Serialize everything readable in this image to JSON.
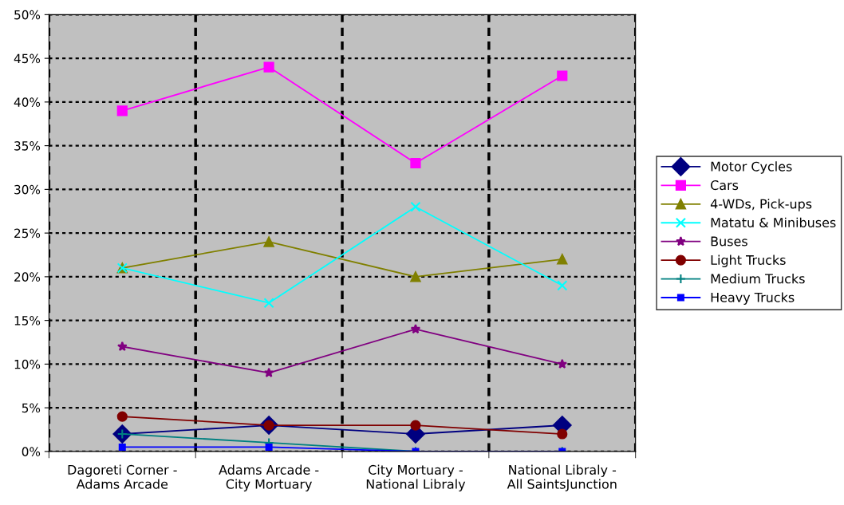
{
  "chart_data": {
    "type": "line",
    "categories": [
      "Dagoreti Corner -\nAdams Arcade",
      "Adams Arcade -\nCity Mortuary",
      "City Mortuary -\nNational Libraly",
      "National Libraly -\nAll SaintsJunction"
    ],
    "series": [
      {
        "name": "Motor Cycles",
        "color": "#000080",
        "marker": "diamond",
        "values": [
          2,
          3,
          2,
          3
        ]
      },
      {
        "name": "Cars",
        "color": "#ff00ff",
        "marker": "square",
        "values": [
          39,
          44,
          33,
          43
        ]
      },
      {
        "name": "4-WDs, Pick-ups",
        "color": "#808000",
        "marker": "triangle",
        "values": [
          21,
          24,
          20,
          22
        ]
      },
      {
        "name": "Matatu & Minibuses",
        "color": "#00ffff",
        "marker": "cross",
        "values": [
          21,
          17,
          28,
          19
        ]
      },
      {
        "name": "Buses",
        "color": "#800080",
        "marker": "star",
        "values": [
          12,
          9,
          14,
          10
        ]
      },
      {
        "name": "Light Trucks",
        "color": "#800000",
        "marker": "circle",
        "values": [
          4,
          3,
          3,
          2
        ]
      },
      {
        "name": "Medium Trucks",
        "color": "#008080",
        "marker": "plus",
        "values": [
          2,
          1,
          0,
          0
        ]
      },
      {
        "name": "Heavy Trucks",
        "color": "#0000ff",
        "marker": "square",
        "values": [
          0.5,
          0.5,
          0,
          0
        ]
      }
    ],
    "ylim": [
      0,
      50
    ],
    "yticks": [
      {
        "value": 0,
        "label": "0%"
      },
      {
        "value": 5,
        "label": "5%"
      },
      {
        "value": 10,
        "label": "10%"
      },
      {
        "value": 15,
        "label": "15%"
      },
      {
        "value": 20,
        "label": "20%"
      },
      {
        "value": 25,
        "label": "25%"
      },
      {
        "value": 30,
        "label": "30%"
      },
      {
        "value": 35,
        "label": "35%"
      },
      {
        "value": 40,
        "label": "40%"
      },
      {
        "value": 45,
        "label": "45%"
      },
      {
        "value": 50,
        "label": "50%"
      }
    ],
    "grid": true,
    "legend": "right",
    "line_style": "solid"
  }
}
